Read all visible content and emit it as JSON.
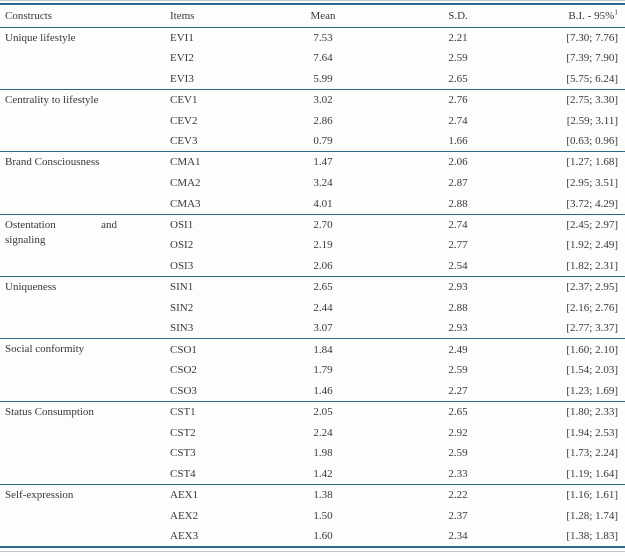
{
  "accent_color": "#2e6a8e",
  "table": {
    "headers": {
      "constructs": "Constructs",
      "items": "Items",
      "mean": "Mean",
      "sd": "S.D.",
      "bi": "B.I. - 95%",
      "bi_superscript": "1"
    },
    "groups": [
      {
        "construct": "Unique lifestyle",
        "rows": [
          {
            "item": "EVI1",
            "mean": "7.53",
            "sd": "2.21",
            "bi": "[7.30; 7.76]"
          },
          {
            "item": "EVI2",
            "mean": "7.64",
            "sd": "2.59",
            "bi": "[7.39; 7.90]"
          },
          {
            "item": "EVI3",
            "mean": "5.99",
            "sd": "2.65",
            "bi": "[5.75; 6.24]"
          }
        ]
      },
      {
        "construct": "Centrality to lifestyle",
        "rows": [
          {
            "item": "CEV1",
            "mean": "3.02",
            "sd": "2.76",
            "bi": "[2.75; 3.30]"
          },
          {
            "item": "CEV2",
            "mean": "2.86",
            "sd": "2.74",
            "bi": "[2.59; 3.11]"
          },
          {
            "item": "CEV3",
            "mean": "0.79",
            "sd": "1.66",
            "bi": "[0.63; 0.96]"
          }
        ]
      },
      {
        "construct": "Brand Consciousness",
        "rows": [
          {
            "item": "CMA1",
            "mean": "1.47",
            "sd": "2.06",
            "bi": "[1.27; 1.68]"
          },
          {
            "item": "CMA2",
            "mean": "3.24",
            "sd": "2.87",
            "bi": "[2.95; 3.51]"
          },
          {
            "item": "CMA3",
            "mean": "4.01",
            "sd": "2.88",
            "bi": "[3.72; 4.29]"
          }
        ]
      },
      {
        "construct_line1_left": "Ostentation",
        "construct_line1_right": "and",
        "construct_line2": "signaling",
        "rows": [
          {
            "item": "OSI1",
            "mean": "2.70",
            "sd": "2.74",
            "bi": "[2.45; 2.97]"
          },
          {
            "item": "OSI2",
            "mean": "2.19",
            "sd": "2.77",
            "bi": "[1.92; 2.49]"
          },
          {
            "item": "OSI3",
            "mean": "2.06",
            "sd": "2.54",
            "bi": "[1.82; 2.31]"
          }
        ]
      },
      {
        "construct": "Uniqueness",
        "rows": [
          {
            "item": "SIN1",
            "mean": "2.65",
            "sd": "2.93",
            "bi": "[2.37; 2.95]"
          },
          {
            "item": "SIN2",
            "mean": "2.44",
            "sd": "2.88",
            "bi": "[2.16; 2.76]"
          },
          {
            "item": "SIN3",
            "mean": "3.07",
            "sd": "2.93",
            "bi": "[2.77; 3.37]"
          }
        ]
      },
      {
        "construct": "Social conformity",
        "rows": [
          {
            "item": "CSO1",
            "mean": "1.84",
            "sd": "2.49",
            "bi": "[1.60; 2.10]"
          },
          {
            "item": "CSO2",
            "mean": "1.79",
            "sd": "2.59",
            "bi": "[1.54; 2.03]"
          },
          {
            "item": "CSO3",
            "mean": "1.46",
            "sd": "2.27",
            "bi": "[1.23; 1.69]"
          }
        ]
      },
      {
        "construct": "Status Consumption",
        "rows": [
          {
            "item": "CST1",
            "mean": "2.05",
            "sd": "2.65",
            "bi": "[1.80; 2.33]"
          },
          {
            "item": "CST2",
            "mean": "2.24",
            "sd": "2.92",
            "bi": "[1.94; 2.53]"
          },
          {
            "item": "CST3",
            "mean": "1.98",
            "sd": "2.59",
            "bi": "[1.73; 2.24]"
          },
          {
            "item": "CST4",
            "mean": "1.42",
            "sd": "2.33",
            "bi": "[1.19; 1.64]"
          }
        ]
      },
      {
        "construct": "Self-expression",
        "rows": [
          {
            "item": "AEX1",
            "mean": "1.38",
            "sd": "2.22",
            "bi": "[1.16; 1.61]"
          },
          {
            "item": "AEX2",
            "mean": "1.50",
            "sd": "2.37",
            "bi": "[1.28; 1.74]"
          },
          {
            "item": "AEX3",
            "mean": "1.60",
            "sd": "2.34",
            "bi": "[1.38; 1.83]"
          }
        ]
      }
    ]
  }
}
